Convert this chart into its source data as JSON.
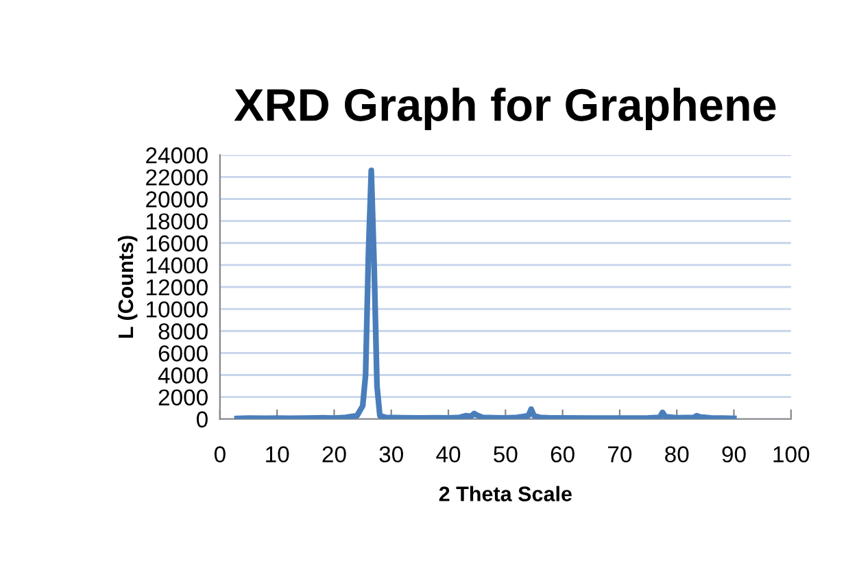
{
  "chart_data": {
    "type": "line",
    "title": "XRD Graph for Graphene",
    "xlabel": "2 Theta Scale",
    "ylabel": "L (Counts)",
    "series": [
      {
        "color": "#4a7ebb",
        "x": [
          3,
          5,
          8,
          10,
          12,
          15,
          17,
          18,
          20,
          22,
          24,
          25,
          25.5,
          26,
          26.5,
          27,
          27.5,
          28,
          29,
          32,
          35,
          38,
          40,
          42,
          43,
          44,
          44.5,
          45,
          46,
          48,
          50,
          52,
          54,
          54.5,
          55,
          56,
          58,
          60,
          65,
          70,
          75,
          77,
          77.5,
          78,
          80,
          83,
          83.5,
          84,
          86,
          88,
          90
        ],
        "values": [
          50,
          80,
          60,
          90,
          70,
          80,
          100,
          120,
          90,
          150,
          300,
          1200,
          4000,
          15000,
          22600,
          14000,
          3000,
          300,
          150,
          120,
          100,
          120,
          100,
          150,
          300,
          250,
          500,
          350,
          150,
          120,
          100,
          150,
          300,
          900,
          300,
          150,
          100,
          100,
          80,
          90,
          100,
          150,
          600,
          200,
          120,
          150,
          300,
          200,
          100,
          80,
          60
        ]
      }
    ],
    "xlim": [
      0,
      100
    ],
    "xticks": [
      0,
      10,
      20,
      30,
      40,
      50,
      60,
      70,
      80,
      90,
      100
    ],
    "ylim": [
      0,
      24000
    ],
    "yticks": [
      0,
      2000,
      4000,
      6000,
      8000,
      10000,
      12000,
      14000,
      16000,
      18000,
      20000,
      22000,
      24000
    ],
    "grid": "y",
    "legend": false,
    "marker": "none",
    "line_style": "solid"
  }
}
